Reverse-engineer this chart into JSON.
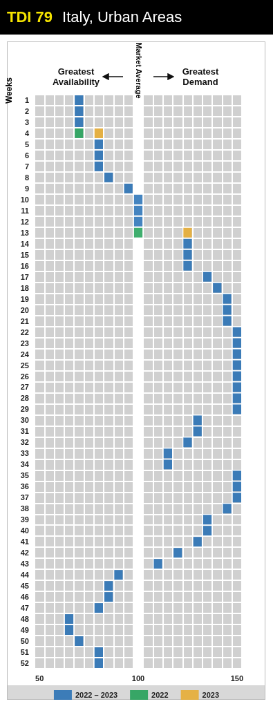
{
  "chart_data": {
    "type": "scatter",
    "title": "TDI 79",
    "subtitle": "Italy, Urban Areas",
    "ylabel": "Weeks",
    "orientation": "horizontal",
    "marker": "square",
    "grid": true,
    "legend": "bottom",
    "categories": [
      "1",
      "2",
      "3",
      "4",
      "5",
      "6",
      "7",
      "8",
      "9",
      "10",
      "11",
      "12",
      "13",
      "14",
      "15",
      "16",
      "17",
      "18",
      "19",
      "20",
      "21",
      "22",
      "23",
      "24",
      "25",
      "26",
      "27",
      "28",
      "29",
      "30",
      "31",
      "32",
      "33",
      "34",
      "35",
      "36",
      "37",
      "38",
      "39",
      "40",
      "41",
      "42",
      "43",
      "44",
      "45",
      "46",
      "47",
      "48",
      "49",
      "50",
      "51",
      "52"
    ],
    "xlim": [
      47.5,
      152.5
    ],
    "xticks": [
      50,
      100,
      150
    ],
    "bands": [
      {
        "axis": "x",
        "from": 97.5,
        "to": 102.5,
        "label": "Market Average",
        "color": "#ffffff"
      }
    ],
    "annotations": [
      "Greatest Availability",
      "Greatest Demand"
    ],
    "series": [
      {
        "name": "2022 – 2023",
        "color": "#1565b0",
        "values": [
          70,
          70,
          70,
          null,
          80,
          80,
          80,
          85,
          95,
          100,
          100,
          100,
          null,
          125,
          125,
          125,
          135,
          140,
          145,
          145,
          145,
          150,
          150,
          150,
          150,
          150,
          150,
          150,
          150,
          130,
          130,
          125,
          115,
          115,
          150,
          150,
          150,
          145,
          135,
          135,
          130,
          120,
          110,
          90,
          85,
          85,
          80,
          65,
          65,
          70,
          80,
          80
        ]
      },
      {
        "name": "2022",
        "color": "#0f9a4a",
        "values": [
          null,
          null,
          null,
          70,
          null,
          null,
          null,
          null,
          null,
          null,
          null,
          null,
          100,
          null,
          null,
          null,
          null,
          null,
          null,
          null,
          null,
          null,
          null,
          null,
          null,
          null,
          null,
          null,
          null,
          null,
          null,
          null,
          null,
          null,
          null,
          null,
          null,
          null,
          null,
          null,
          null,
          null,
          null,
          null,
          null,
          null,
          null,
          null,
          null,
          null,
          null,
          null
        ]
      },
      {
        "name": "2023",
        "color": "#e8a820",
        "values": [
          null,
          null,
          null,
          80,
          null,
          null,
          null,
          null,
          null,
          null,
          null,
          null,
          125,
          null,
          null,
          null,
          null,
          null,
          null,
          null,
          null,
          null,
          null,
          null,
          null,
          null,
          null,
          null,
          null,
          null,
          null,
          null,
          null,
          null,
          null,
          null,
          null,
          null,
          null,
          null,
          null,
          null,
          null,
          null,
          null,
          null,
          null,
          null,
          null,
          null,
          null,
          null
        ]
      }
    ]
  }
}
